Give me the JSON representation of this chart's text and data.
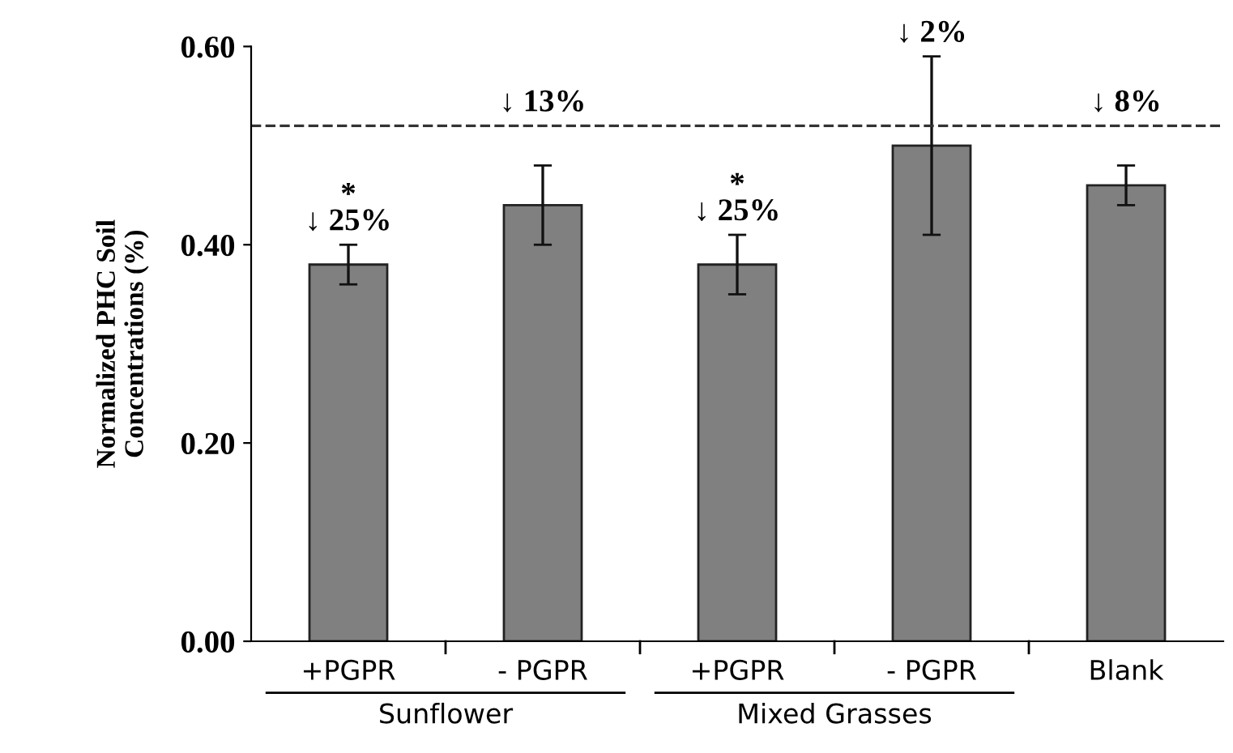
{
  "chart_data": {
    "type": "bar",
    "ylabel": "Normalized PHC Soil\nConcentrations (%)",
    "categories": [
      "+PGPR",
      "- PGPR",
      "+PGPR",
      "- PGPR",
      "Blank"
    ],
    "values": [
      0.38,
      0.44,
      0.38,
      0.5,
      0.46
    ],
    "errors": [
      0.02,
      0.04,
      0.03,
      0.09,
      0.02
    ],
    "color": "#808080",
    "ylim": [
      0,
      0.6
    ],
    "yticks": [
      {
        "value": 0,
        "label": "0.00"
      },
      {
        "value": 0.2,
        "label": "0.20"
      },
      {
        "value": 0.4,
        "label": "0.40"
      },
      {
        "value": 0.6,
        "label": "0.60"
      }
    ],
    "ref_lines": [
      {
        "axis": "y",
        "value": 0.52,
        "line_style": "dashed",
        "color": "#333333"
      }
    ],
    "annotations": [
      "*\n↓ 25%",
      "↓ 13%",
      "*\n↓ 25%",
      "↓ 2%",
      "↓ 8%",
      "Sunflower",
      "Mixed Grasses"
    ],
    "grid": false
  }
}
